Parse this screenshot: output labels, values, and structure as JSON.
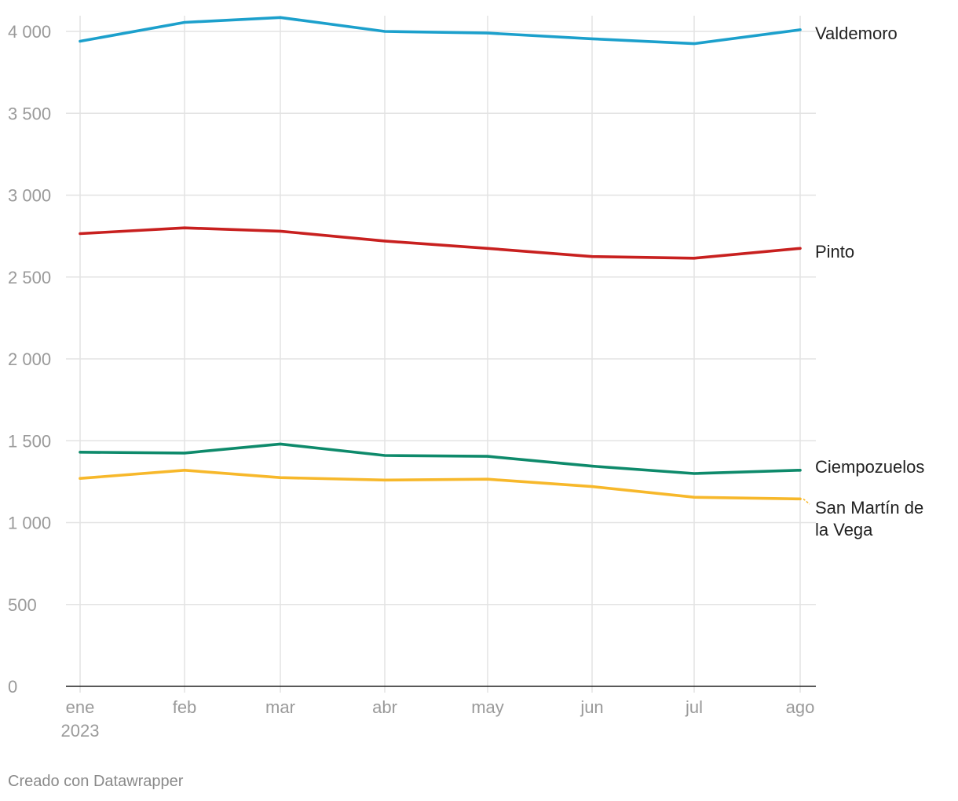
{
  "chart_data": {
    "type": "line",
    "title": "",
    "xlabel": "",
    "ylabel": "",
    "ylim": [
      0,
      4000
    ],
    "yticks": [
      0,
      500,
      1000,
      1500,
      2000,
      2500,
      3000,
      3500,
      4000
    ],
    "ytick_labels": [
      "0",
      "500",
      "1 000",
      "1 500",
      "2 000",
      "2 500",
      "3 000",
      "3 500",
      "4 000"
    ],
    "categories": [
      "ene",
      "feb",
      "mar",
      "abr",
      "may",
      "jun",
      "jul",
      "ago"
    ],
    "year_label": "2023",
    "series": [
      {
        "name": "Valdemoro",
        "label": "Valdemoro",
        "color": "#1ca0cc",
        "values": [
          3940,
          4055,
          4085,
          4000,
          3990,
          3955,
          3925,
          4010
        ]
      },
      {
        "name": "Pinto",
        "label": "Pinto",
        "color": "#c8201f",
        "values": [
          2765,
          2800,
          2780,
          2720,
          2675,
          2625,
          2615,
          2675
        ]
      },
      {
        "name": "Ciempozuelos",
        "label": "Ciempozuelos",
        "color": "#0e8a6b",
        "values": [
          1430,
          1425,
          1480,
          1410,
          1405,
          1345,
          1300,
          1320
        ]
      },
      {
        "name": "San Martín de la Vega",
        "label_lines": [
          "San Martín de",
          "la Vega"
        ],
        "color": "#f7b82b",
        "values": [
          1270,
          1320,
          1275,
          1260,
          1265,
          1220,
          1155,
          1145
        ]
      }
    ]
  },
  "footer": {
    "credit": "Creado con Datawrapper"
  }
}
